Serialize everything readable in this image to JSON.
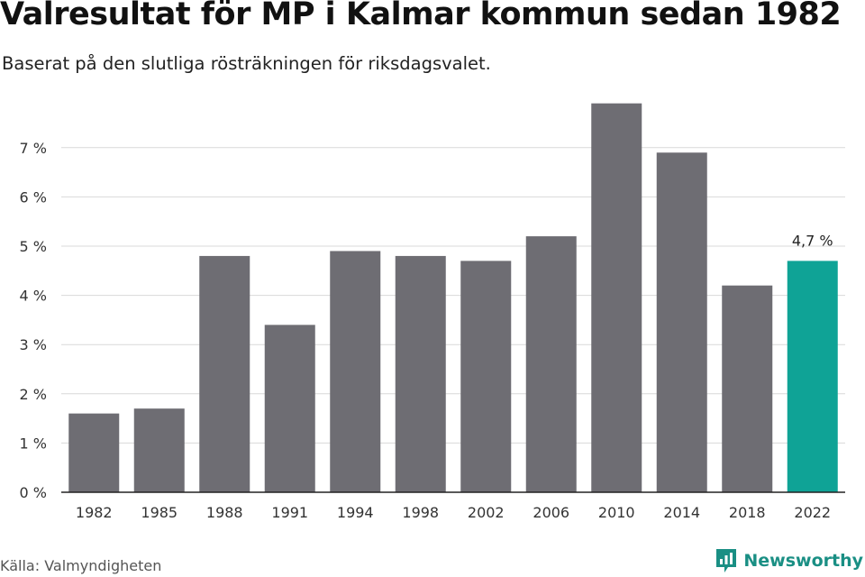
{
  "header": {
    "title": "Valresultat för MP i Kalmar kommun sedan 1982",
    "subtitle": "Baserat på den slutliga rösträkningen för riksdagsvalet."
  },
  "footer": {
    "source": "Källa: Valmyndigheten",
    "brand": "Newsworthy",
    "brand_icon": "newsworthy-logo-icon"
  },
  "colors": {
    "bar": "#6e6d73",
    "highlight": "#0fa396",
    "grid": "#d9d9d9",
    "axis": "#222222",
    "brand": "#1a8f84"
  },
  "chart_data": {
    "type": "bar",
    "title": "Valresultat för MP i Kalmar kommun sedan 1982",
    "subtitle": "Baserat på den slutliga rösträkningen för riksdagsvalet.",
    "xlabel": "",
    "ylabel": "",
    "categories": [
      "1982",
      "1985",
      "1988",
      "1991",
      "1994",
      "1998",
      "2002",
      "2006",
      "2010",
      "2014",
      "2018",
      "2022"
    ],
    "values": [
      1.6,
      1.7,
      4.8,
      3.4,
      4.9,
      4.8,
      4.7,
      5.2,
      7.9,
      6.9,
      4.2,
      4.7
    ],
    "highlight_index": 11,
    "data_labels": [
      {
        "index": 11,
        "text": "4,7 %"
      }
    ],
    "ylim": [
      0,
      8
    ],
    "yticks": [
      {
        "value": 0,
        "label": "0 %"
      },
      {
        "value": 1,
        "label": "1 %"
      },
      {
        "value": 2,
        "label": "2 %"
      },
      {
        "value": 3,
        "label": "3 %"
      },
      {
        "value": 4,
        "label": "4 %"
      },
      {
        "value": 5,
        "label": "5 %"
      },
      {
        "value": 6,
        "label": "6 %"
      },
      {
        "value": 7,
        "label": "7 %"
      }
    ],
    "grid": true,
    "legend": "none"
  }
}
